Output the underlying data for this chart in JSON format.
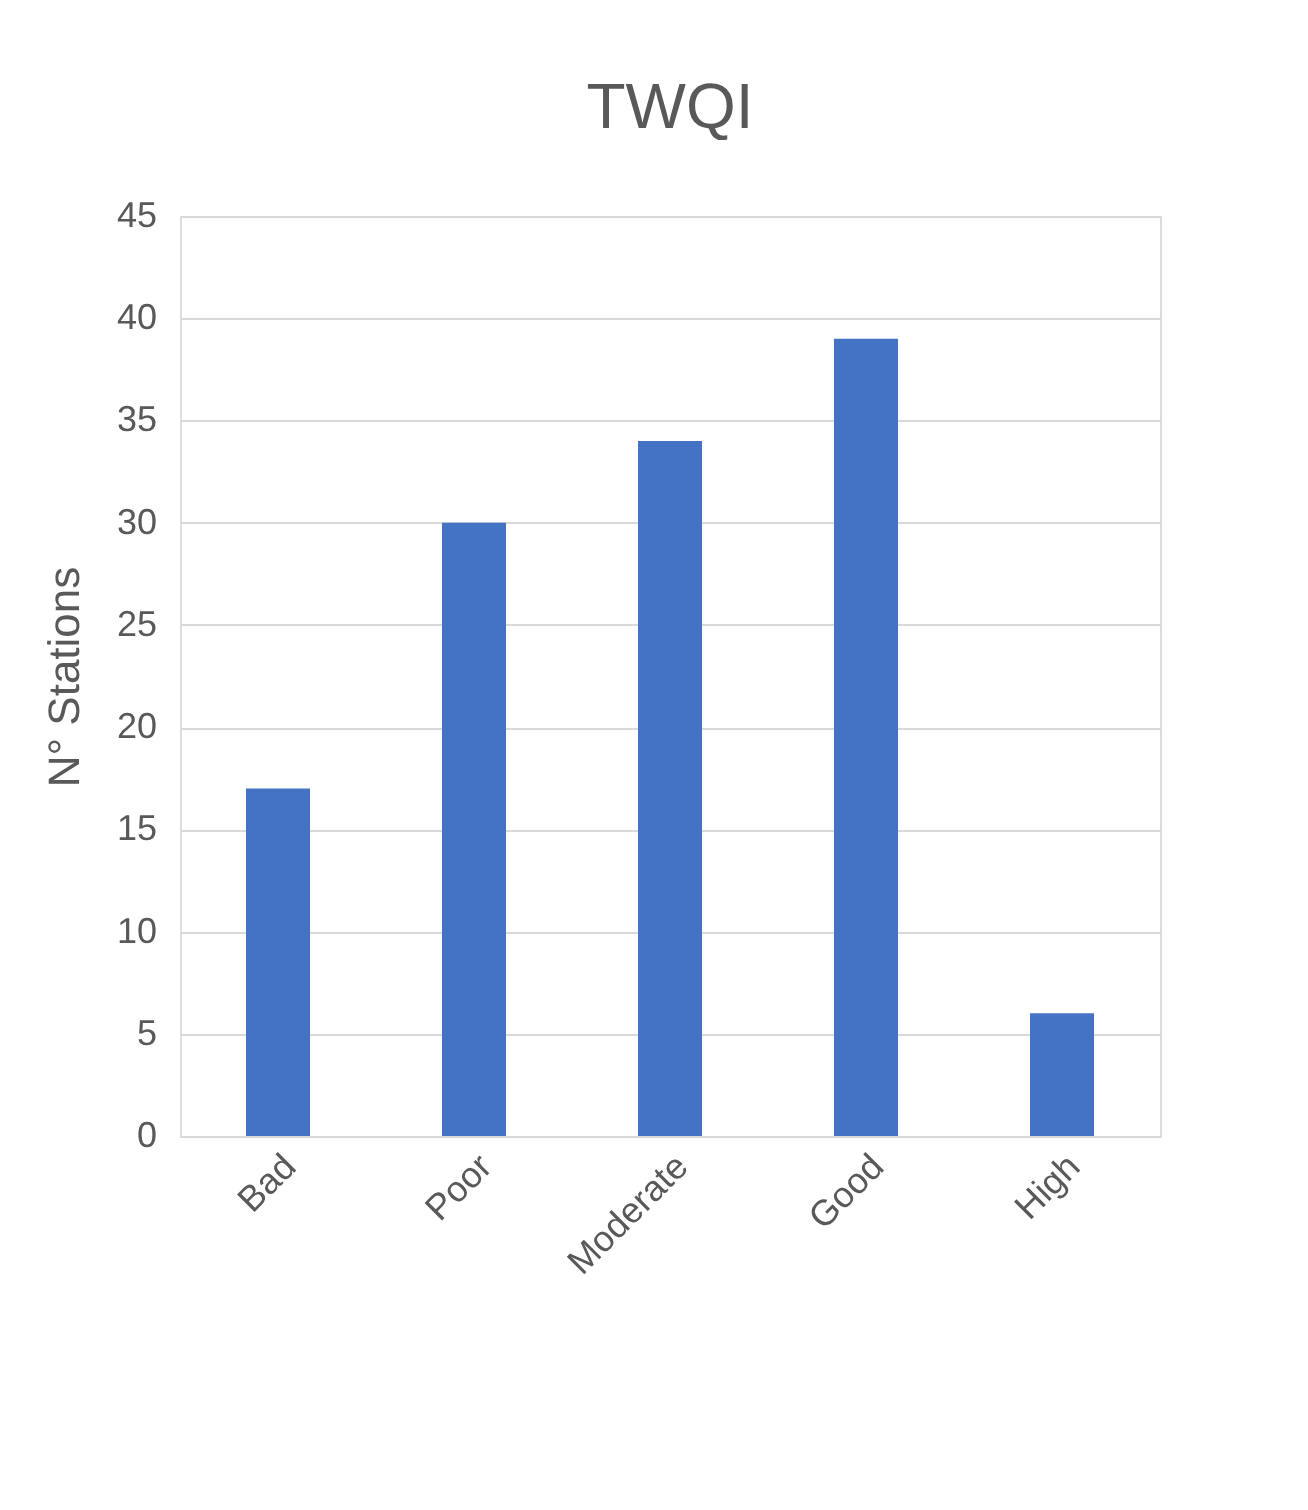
{
  "chart_data": {
    "type": "bar",
    "title": "TWQI",
    "ylabel": "N° Stations",
    "categories": [
      "Bad",
      "Poor",
      "Moderate",
      "Good",
      "High"
    ],
    "values": [
      17,
      30,
      34,
      39,
      6
    ],
    "color": "#4472c4",
    "ylim": [
      0,
      45
    ],
    "yticks": [
      0,
      5,
      10,
      15,
      20,
      25,
      30,
      35,
      40,
      45
    ],
    "grid": "y"
  }
}
